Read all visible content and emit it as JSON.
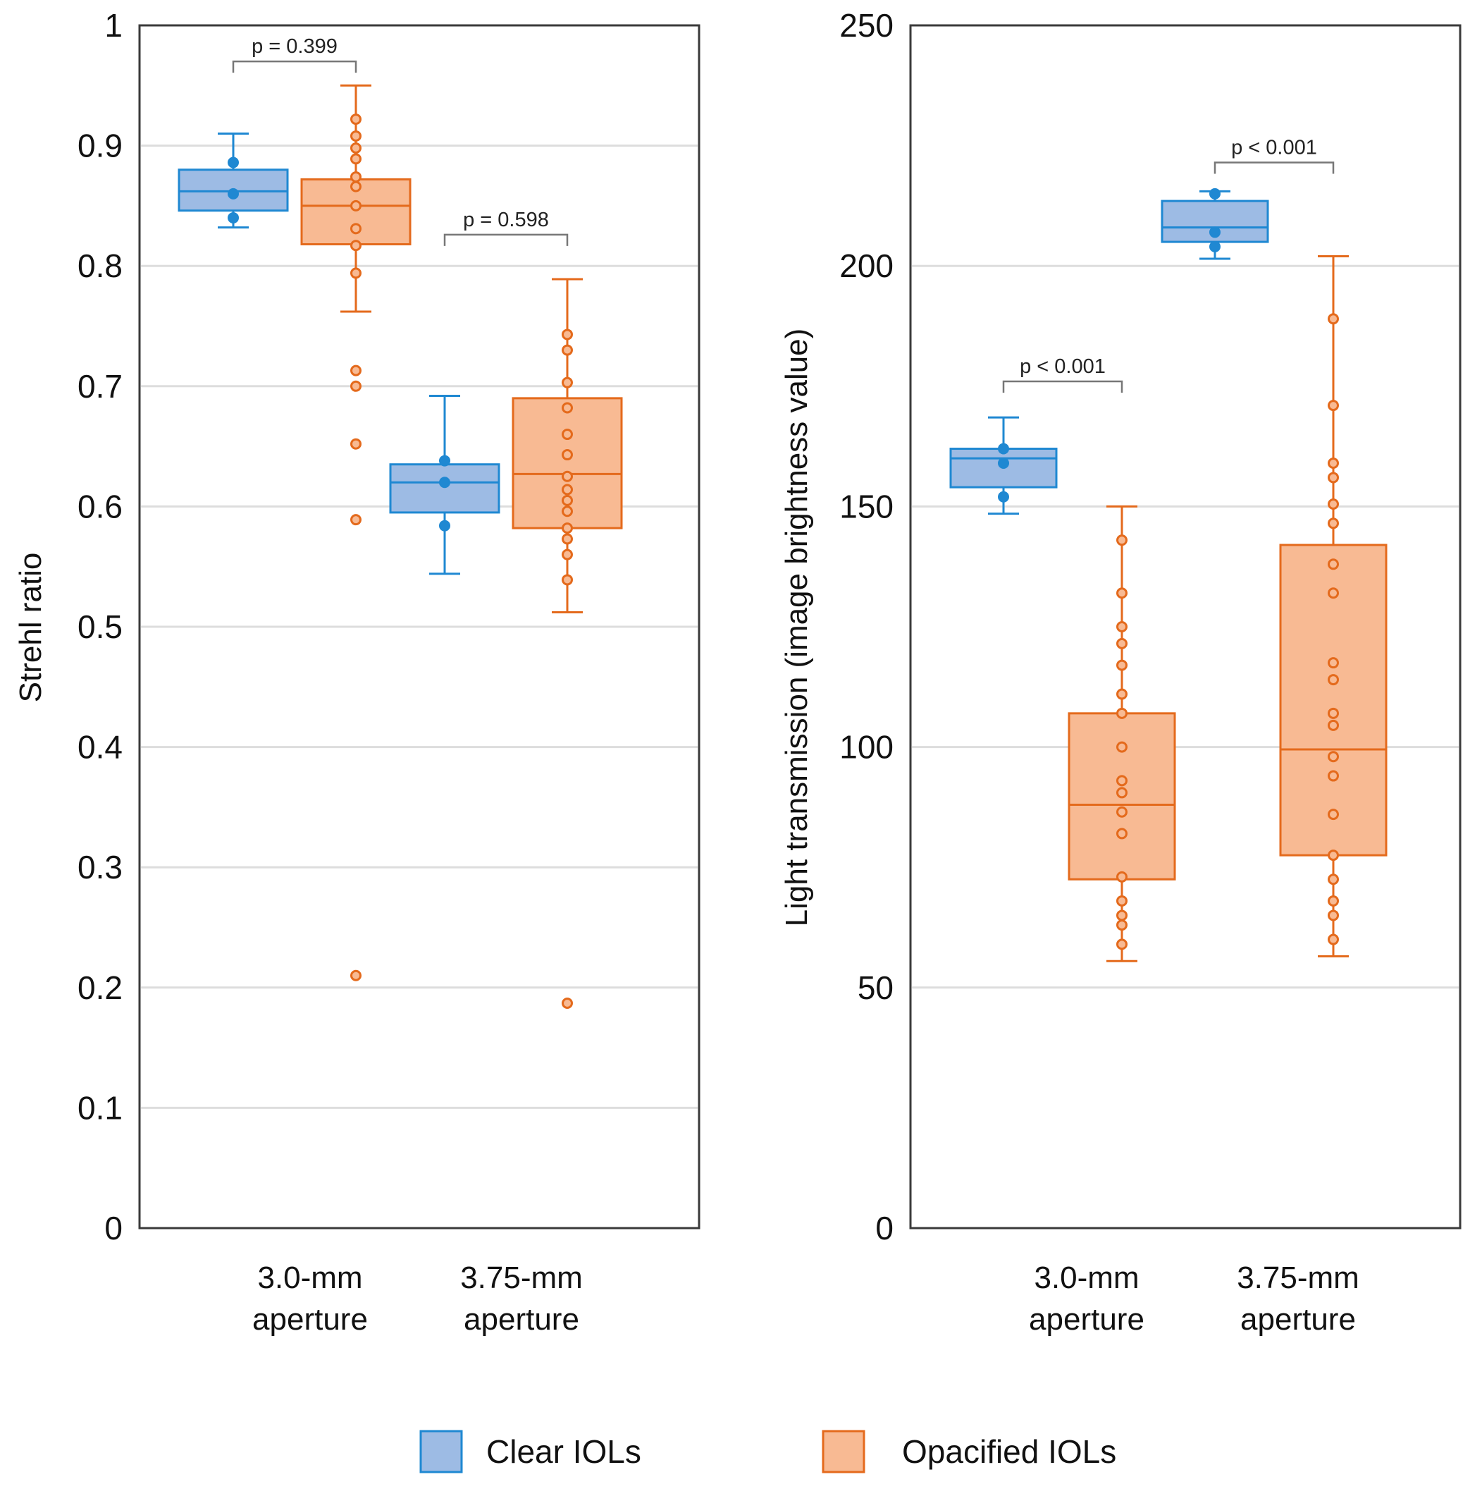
{
  "legend": {
    "clear_label": "Clear IOLs",
    "opacified_label": "Opacified IOLs",
    "clear_color": "#1f88d2",
    "clear_fill": "#9dbbe4",
    "opacified_color": "#e46a1c",
    "opacified_fill": "#f8ba93"
  },
  "chart_data": [
    {
      "type": "box",
      "ylabel": "Strehl ratio",
      "ylim": [
        0,
        1
      ],
      "yticks": [
        0,
        0.1,
        0.2,
        0.3,
        0.4,
        0.5,
        0.6,
        0.7,
        0.8,
        0.9,
        1
      ],
      "yticks_text": [
        "0",
        "0.1",
        "0.2",
        "0.3",
        "0.4",
        "0.5",
        "0.6",
        "0.7",
        "0.8",
        "0.9",
        "1"
      ],
      "grid": true,
      "categories": [
        {
          "line1": "3.0-mm",
          "line2": "aperture"
        },
        {
          "line1": "3.75-mm",
          "line2": "aperture"
        }
      ],
      "series": [
        {
          "name": "Clear IOLs",
          "boxes": [
            {
              "whisker_low": 0.832,
              "q1": 0.846,
              "median": 0.862,
              "q3": 0.88,
              "whisker_high": 0.91,
              "points": [
                0.886,
                0.86,
                0.84
              ]
            },
            {
              "whisker_low": 0.544,
              "q1": 0.595,
              "median": 0.62,
              "q3": 0.635,
              "whisker_high": 0.692,
              "points": [
                0.638,
                0.62,
                0.584
              ]
            }
          ]
        },
        {
          "name": "Opacified IOLs",
          "boxes": [
            {
              "whisker_low": 0.762,
              "q1": 0.818,
              "median": 0.85,
              "q3": 0.872,
              "whisker_high": 0.95,
              "points": [
                0.922,
                0.908,
                0.898,
                0.889,
                0.874,
                0.866,
                0.85,
                0.831,
                0.817,
                0.794
              ],
              "outliers": [
                0.713,
                0.7,
                0.652,
                0.589,
                0.21
              ]
            },
            {
              "whisker_low": 0.512,
              "q1": 0.582,
              "median": 0.627,
              "q3": 0.69,
              "whisker_high": 0.789,
              "points": [
                0.743,
                0.73,
                0.703,
                0.682,
                0.66,
                0.643,
                0.625,
                0.614,
                0.605,
                0.596,
                0.582,
                0.573,
                0.56,
                0.539
              ],
              "outliers": [
                0.187
              ]
            }
          ]
        }
      ],
      "annotations": [
        {
          "text": "p = 0.399",
          "category": 0,
          "y": 0.97
        },
        {
          "text": "p = 0.598",
          "category": 1,
          "y": 0.826
        }
      ]
    },
    {
      "type": "box",
      "ylabel": "Light transmission (image brightness value)",
      "ylim": [
        0,
        250
      ],
      "yticks": [
        0,
        50,
        100,
        150,
        200,
        250
      ],
      "yticks_text": [
        "0",
        "50",
        "100",
        "150",
        "200",
        "250"
      ],
      "grid": true,
      "categories": [
        {
          "line1": "3.0-mm",
          "line2": "aperture"
        },
        {
          "line1": "3.75-mm",
          "line2": "aperture"
        }
      ],
      "series": [
        {
          "name": "Clear IOLs",
          "boxes": [
            {
              "whisker_low": 148.5,
              "q1": 154,
              "median": 160,
              "q3": 162,
              "whisker_high": 168.5,
              "points": [
                162,
                159,
                152
              ]
            },
            {
              "whisker_low": 201.5,
              "q1": 205,
              "median": 208,
              "q3": 213.5,
              "whisker_high": 215.5,
              "points": [
                215,
                207,
                204
              ]
            }
          ]
        },
        {
          "name": "Opacified IOLs",
          "boxes": [
            {
              "whisker_low": 55.5,
              "q1": 72.5,
              "median": 88,
              "q3": 107,
              "whisker_high": 150,
              "points": [
                143,
                132,
                125,
                121.5,
                117,
                111,
                107,
                100,
                93,
                90.5,
                86.5,
                82,
                73,
                68,
                65,
                63,
                59
              ]
            },
            {
              "whisker_low": 56.5,
              "q1": 77.5,
              "median": 99.5,
              "q3": 142,
              "whisker_high": 202,
              "points": [
                189,
                171,
                159,
                156,
                150.5,
                146.5,
                138,
                132,
                117.5,
                114,
                107,
                104.5,
                98,
                94,
                86,
                77.5,
                72.5,
                68,
                65,
                60
              ]
            }
          ]
        }
      ],
      "annotations": [
        {
          "text": "p < 0.001",
          "category": 0,
          "y": 176
        },
        {
          "text": "p < 0.001",
          "category": 1,
          "y": 221.5
        }
      ]
    }
  ]
}
